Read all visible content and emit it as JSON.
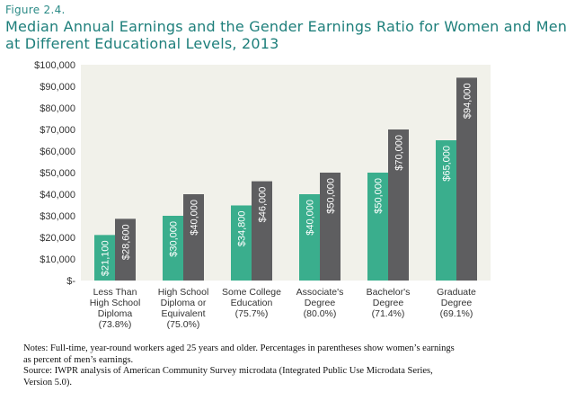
{
  "figure_label": "Figure 2.4.",
  "title": "Median Annual Earnings and the Gender Earnings Ratio for Women and Men at Different Educational Levels, 2013",
  "notes": {
    "line1": "Notes: Full-time, year-round workers aged 25 years and older. Percentages in parentheses show women’s earnings",
    "line2": "as percent of men’s earnings.",
    "line3": "Source: IWPR analysis of American Community Survey microdata (Integrated Public Use Microdata Series,",
    "line4": "Version 5.0)."
  },
  "colors": {
    "women": "#3aae8d",
    "men": "#5e5e60",
    "plot_background": "#f1f1ea",
    "title": "#1e7f7b"
  },
  "chart_data": {
    "type": "bar",
    "categories": [
      [
        "Less Than",
        "High School",
        "Diploma",
        "(73.8%)"
      ],
      [
        "High School",
        "Diploma or",
        "Equivalent",
        "(75.0%)"
      ],
      [
        "Some College",
        "Education",
        "(75.7%)"
      ],
      [
        "Associate's",
        "Degree",
        "(80.0%)"
      ],
      [
        "Bachelor's",
        "Degree",
        "(71.4%)"
      ],
      [
        "Graduate",
        "Degree",
        "(69.1%)"
      ]
    ],
    "series": [
      {
        "values": [
          21100,
          30000,
          34800,
          40000,
          50000,
          65000
        ],
        "labels": [
          "$21,100",
          "$30,000",
          "$34,800",
          "$40,000",
          "$50,000",
          "$65,000"
        ]
      },
      {
        "values": [
          28600,
          40000,
          46000,
          50000,
          70000,
          94000
        ],
        "labels": [
          "$28,600",
          "$40,000",
          "$46,000",
          "$50,000",
          "$70,000",
          "$94,000"
        ]
      }
    ],
    "ylim": [
      0,
      100000
    ],
    "yticks": [
      0,
      10000,
      20000,
      30000,
      40000,
      50000,
      60000,
      70000,
      80000,
      90000,
      100000
    ],
    "ytick_labels": [
      "$-",
      "$10,000",
      "$20,000",
      "$30,000",
      "$40,000",
      "$50,000",
      "$60,000",
      "$70,000",
      "$80,000",
      "$90,000",
      "$100,000"
    ],
    "grid": false,
    "legend": "none"
  }
}
